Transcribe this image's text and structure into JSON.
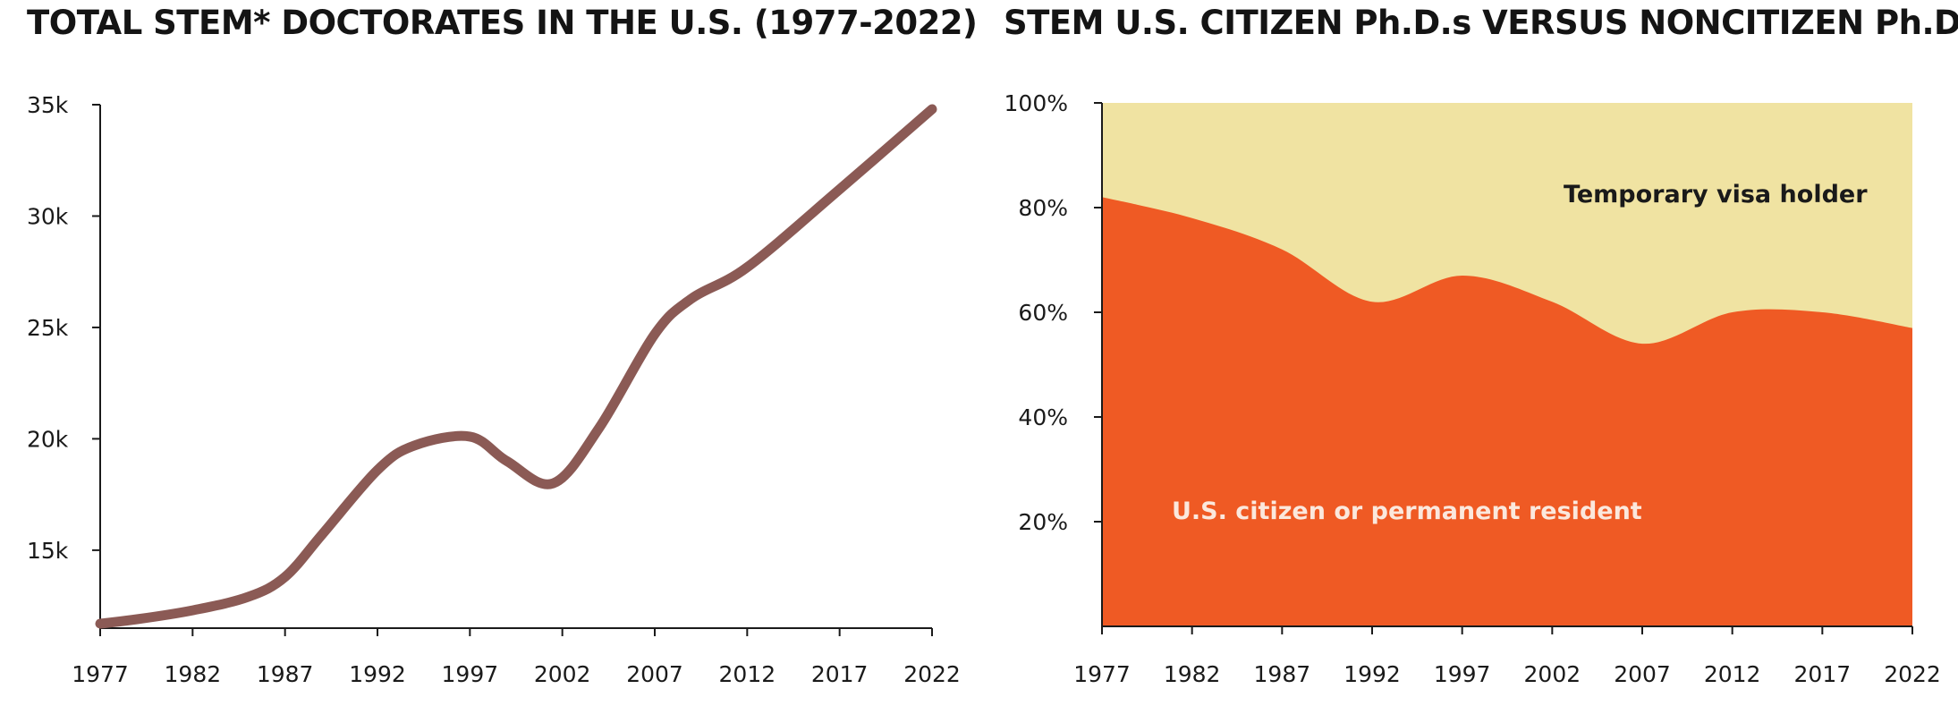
{
  "colors": {
    "line": "#8b5a55",
    "citizen": "#ef5a24",
    "visa": "#f0e3a2",
    "axis": "#1a1a1a",
    "label_light": "#fbe8dd",
    "label_dark": "#1a1a1a"
  },
  "chart_data": [
    {
      "type": "line",
      "title": "TOTAL STEM* DOCTORATES IN THE U.S. (1977-2022)",
      "xlabel": "",
      "ylabel": "",
      "xlim": [
        1977,
        2022
      ],
      "ylim": [
        11500,
        35000
      ],
      "x_ticks": [
        "1977",
        "1982",
        "1987",
        "1992",
        "1997",
        "2002",
        "2007",
        "2012",
        "2017",
        "2022"
      ],
      "y_ticks": [
        {
          "value": 15000,
          "label": "15k"
        },
        {
          "value": 20000,
          "label": "20k"
        },
        {
          "value": 25000,
          "label": "25k"
        },
        {
          "value": 30000,
          "label": "30k"
        },
        {
          "value": 35000,
          "label": "35k"
        }
      ],
      "grid": false,
      "series": [
        {
          "x": [
            1977,
            1979,
            1982,
            1985,
            1987,
            1989,
            1992,
            1994,
            1997,
            1999,
            2001.5,
            2004,
            2007,
            2009,
            2012,
            2017,
            2022
          ],
          "values": [
            11700,
            11900,
            12300,
            12900,
            13800,
            15700,
            18600,
            19700,
            20100,
            19000,
            18000,
            20500,
            24700,
            26300,
            27700,
            31200,
            34800
          ]
        }
      ]
    },
    {
      "type": "area",
      "title": "STEM U.S. CITIZEN Ph.D.s VERSUS NONCITIZEN Ph.D.s",
      "xlabel": "",
      "ylabel": "",
      "xlim": [
        1977,
        2022
      ],
      "ylim": [
        0,
        100
      ],
      "x_ticks": [
        "1977",
        "1982",
        "1987",
        "1992",
        "1997",
        "2002",
        "2007",
        "2012",
        "2017",
        "2022"
      ],
      "y_ticks": [
        {
          "value": 20,
          "label": "20%"
        },
        {
          "value": 40,
          "label": "40%"
        },
        {
          "value": 60,
          "label": "60%"
        },
        {
          "value": 80,
          "label": "80%"
        },
        {
          "value": 100,
          "label": "100%"
        }
      ],
      "grid": false,
      "x": [
        1977,
        1982,
        1987,
        1992,
        1997,
        2002,
        2007,
        2012,
        2017,
        2022
      ],
      "series": [
        {
          "name": "U.S. citizen or permanent resident",
          "values": [
            82,
            78,
            72,
            62,
            67,
            62,
            54,
            60,
            60,
            57
          ]
        },
        {
          "name": "Temporary visa holder",
          "values": [
            18,
            22,
            28,
            38,
            33,
            38,
            46,
            40,
            40,
            43
          ]
        }
      ]
    }
  ]
}
